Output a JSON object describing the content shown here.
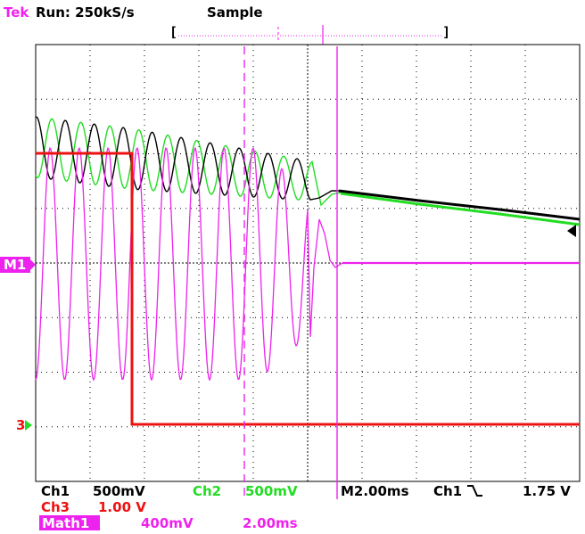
{
  "header": {
    "brand": "Tek",
    "run_state": "Run: 250kS/s",
    "acq_mode": "Sample",
    "record_open": "[",
    "record_close": "]"
  },
  "footer": {
    "ch1_label": "Ch1",
    "ch1_scale": "500mV",
    "ch2_label": "Ch2",
    "ch2_scale": "500mV",
    "timebase": "M2.00ms",
    "trigger_source": "Ch1",
    "trigger_slope_icon": "falling-edge-icon",
    "trigger_level": "1.75 V",
    "ch3_label": "Ch3",
    "ch3_scale": "1.00 V",
    "math_label": "Math1",
    "math_scale": "400mV",
    "math_time": "2.00ms"
  },
  "markers": {
    "math_marker": "M1",
    "ch3_marker": "3"
  },
  "colors": {
    "background": "#ffffff",
    "grid": "#000000",
    "ch1": "#000000",
    "ch2": "#22dd22",
    "ch3": "#ee1111",
    "math": "#ee22ee",
    "cursor": "#ee22ee",
    "brand": "#ee22ee"
  }
}
